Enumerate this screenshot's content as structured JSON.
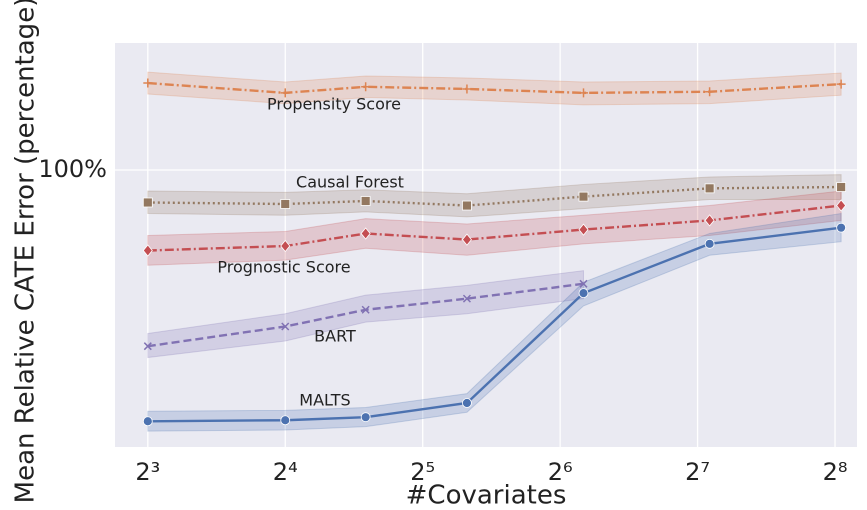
{
  "chart_data": {
    "type": "line",
    "xlabel": "#Covariates",
    "ylabel": "Mean Relative CATE Error (percentage)",
    "xscale": "log",
    "yscale": "log",
    "grid": true,
    "xlim": [
      6.78,
      286
    ],
    "ylim": [
      8.6,
      308
    ],
    "xticks": [
      {
        "value": 8,
        "label": "2³"
      },
      {
        "value": 16,
        "label": "2⁴"
      },
      {
        "value": 32,
        "label": "2⁵"
      },
      {
        "value": 64,
        "label": "2⁶"
      },
      {
        "value": 128,
        "label": "2⁷"
      },
      {
        "value": 256,
        "label": "2⁸"
      }
    ],
    "yticks": [
      {
        "value": 100,
        "label": "100%"
      }
    ],
    "series": [
      {
        "name": "Propensity Score",
        "color": "#dd8452",
        "marker": "plus",
        "linestyle": "dashdot",
        "x": [
          8,
          16,
          24,
          40,
          72,
          136,
          264
        ],
        "values": [
          216,
          198,
          209,
          205,
          198,
          200,
          214
        ],
        "lower": [
          196,
          180,
          190,
          186,
          178,
          180,
          194
        ],
        "upper": [
          238,
          218,
          230,
          226,
          218,
          220,
          236
        ]
      },
      {
        "name": "Causal Forest",
        "color": "#937860",
        "marker": "square",
        "linestyle": "dotted",
        "x": [
          8,
          16,
          24,
          40,
          72,
          136,
          264
        ],
        "values": [
          75,
          74,
          76,
          73,
          79,
          85,
          86
        ],
        "lower": [
          68,
          67,
          69,
          66,
          71,
          77,
          77
        ],
        "upper": [
          83,
          82,
          84,
          81,
          88,
          94,
          96
        ]
      },
      {
        "name": "Prognostic Score",
        "color": "#c44e52",
        "marker": "diamond",
        "linestyle": "dashdot",
        "x": [
          8,
          16,
          24,
          40,
          72,
          136,
          264
        ],
        "values": [
          49,
          51,
          57,
          54,
          59,
          64,
          73
        ],
        "lower": [
          43,
          45,
          50,
          47,
          52,
          56,
          64
        ],
        "upper": [
          56,
          58,
          65,
          62,
          67,
          73,
          83
        ]
      },
      {
        "name": "BART",
        "color": "#8172b3",
        "marker": "x",
        "linestyle": "dashed",
        "x": [
          8,
          16,
          24,
          40,
          72
        ],
        "values": [
          21,
          25,
          29,
          32,
          36.5
        ],
        "lower": [
          19,
          22,
          26,
          28,
          32
        ],
        "upper": [
          23.5,
          28,
          33,
          36,
          41
        ]
      },
      {
        "name": "MALTS",
        "color": "#4c72b0",
        "marker": "circle",
        "linestyle": "solid",
        "x": [
          8,
          16,
          24,
          40,
          72,
          136,
          264
        ],
        "values": [
          10.8,
          10.9,
          11.2,
          12.7,
          33.6,
          52,
          60
        ],
        "lower": [
          9.9,
          10,
          10.3,
          11.7,
          30,
          47,
          53
        ],
        "upper": [
          11.8,
          11.9,
          12.2,
          13.8,
          37,
          57,
          68
        ]
      }
    ]
  }
}
